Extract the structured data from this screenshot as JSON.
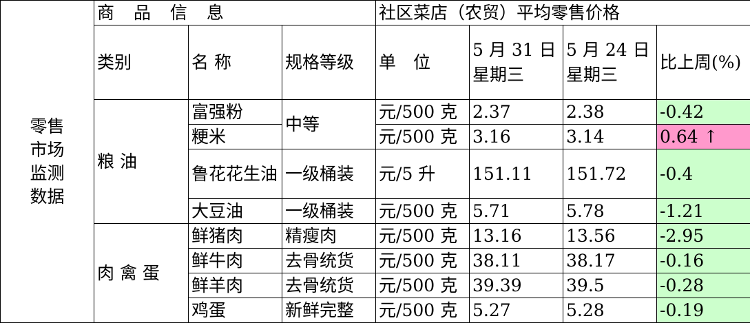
{
  "colors": {
    "decrease": "#ccffcc",
    "increase": "#ff99cc",
    "border": "#000000"
  },
  "side_label": "零售市场监测数据",
  "header": {
    "goods_info": "商 品 信 息",
    "price_group": "社区菜店（农贸）平均零售价格",
    "category": "类别",
    "name": "名 称",
    "spec": "规格等级",
    "unit": "单　位",
    "date_current": "5 月 31 日 星期三",
    "date_previous": "5 月 24 日 星期三",
    "change": "比上周(%)"
  },
  "categories": [
    "粮 油",
    "肉 禽 蛋"
  ],
  "rows": [
    {
      "name": "富强粉",
      "spec": "中等",
      "unit": "元/500 克",
      "current": "2.37",
      "previous": "2.38",
      "change": "-0.42",
      "trend": "down"
    },
    {
      "name": "粳米",
      "spec": "中等",
      "unit": "元/500 克",
      "current": "3.16",
      "previous": "3.14",
      "change": "0.64 ↑",
      "trend": "up"
    },
    {
      "name": "鲁花花生油",
      "spec": "一级桶装",
      "unit": "元/5 升",
      "current": "151.11",
      "previous": "151.72",
      "change": "-0.4",
      "trend": "down"
    },
    {
      "name": "大豆油",
      "spec": "一级桶装",
      "unit": "元/500 克",
      "current": "5.71",
      "previous": "5.78",
      "change": "-1.21",
      "trend": "down"
    },
    {
      "name": "鲜猪肉",
      "spec": "精瘦肉",
      "unit": "元/500 克",
      "current": "13.16",
      "previous": "13.56",
      "change": "-2.95",
      "trend": "down"
    },
    {
      "name": "鲜牛肉",
      "spec": "去骨统货",
      "unit": "元/500 克",
      "current": "38.11",
      "previous": "38.17",
      "change": "-0.16",
      "trend": "down"
    },
    {
      "name": "鲜羊肉",
      "spec": "去骨统货",
      "unit": "元/500 克",
      "current": "39.39",
      "previous": "39.5",
      "change": "-0.28",
      "trend": "down"
    },
    {
      "name": "鸡蛋",
      "spec": "新鲜完整",
      "unit": "元/500 克",
      "current": "5.27",
      "previous": "5.28",
      "change": "-0.19",
      "trend": "down"
    }
  ]
}
